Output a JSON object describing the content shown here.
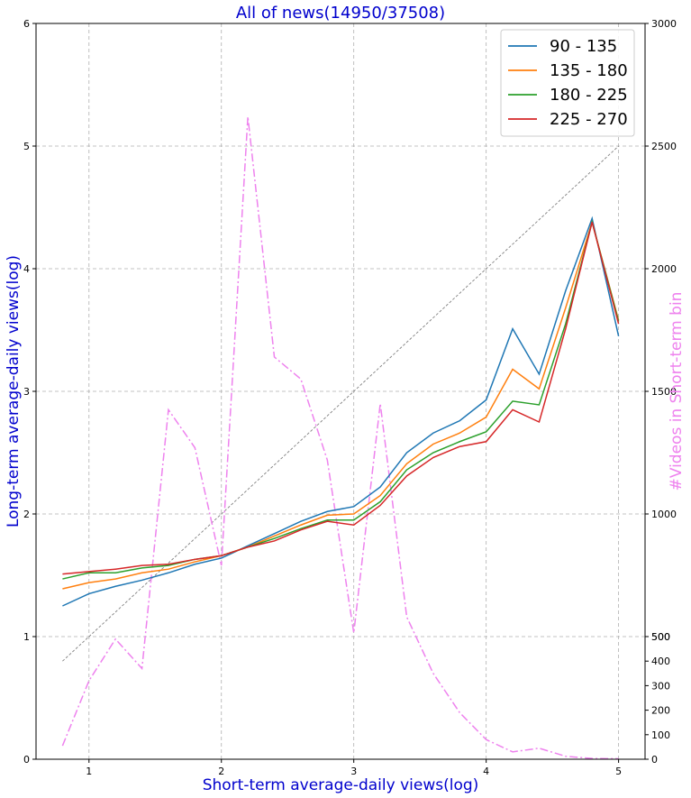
{
  "chart_data": {
    "type": "line",
    "title": "All of news(14950/37508)",
    "xlabel": "Short-term average-daily views(log)",
    "ylabel": "Long-term average-daily views(log)",
    "y2label": "#Videos in Short-term bin",
    "xlim": [
      0.6,
      5.2
    ],
    "ylim": [
      0,
      6
    ],
    "y2lim": [
      0,
      3000
    ],
    "x_ticks": [
      "1",
      "2",
      "3",
      "4",
      "5"
    ],
    "y_ticks": [
      "0",
      "1",
      "2",
      "3",
      "4",
      "5",
      "6"
    ],
    "y2_ticks": [
      "0",
      "100",
      "200",
      "300",
      "400",
      "500",
      "500",
      "1000",
      "1500",
      "2000",
      "2500",
      "3000"
    ],
    "y2_tick_values": [
      0,
      100,
      200,
      300,
      400,
      500,
      500,
      1000,
      1500,
      2000,
      2500,
      3000
    ],
    "grid": true,
    "legend_position": "top-right",
    "x": [
      0.8,
      1.0,
      1.2,
      1.4,
      1.6,
      1.8,
      2.0,
      2.2,
      2.4,
      2.6,
      2.8,
      3.0,
      3.2,
      3.4,
      3.6,
      3.8,
      4.0,
      4.2,
      4.4,
      4.6,
      4.8,
      5.0
    ],
    "series": [
      {
        "name": "90 - 135",
        "color": "#1f77b4",
        "values": [
          1.25,
          1.35,
          1.41,
          1.46,
          1.52,
          1.59,
          1.64,
          1.74,
          1.84,
          1.94,
          2.02,
          2.06,
          2.22,
          2.5,
          2.66,
          2.76,
          2.93,
          3.51,
          3.14,
          3.82,
          4.41,
          3.45
        ]
      },
      {
        "name": "135 - 180",
        "color": "#ff7f0e",
        "values": [
          1.39,
          1.44,
          1.47,
          1.52,
          1.55,
          1.61,
          1.66,
          1.73,
          1.82,
          1.91,
          1.99,
          2.0,
          2.15,
          2.41,
          2.57,
          2.66,
          2.79,
          3.18,
          3.02,
          3.68,
          4.38,
          3.58
        ]
      },
      {
        "name": "180 - 225",
        "color": "#2ca02c",
        "values": [
          1.47,
          1.52,
          1.52,
          1.56,
          1.58,
          1.63,
          1.66,
          1.73,
          1.8,
          1.88,
          1.95,
          1.95,
          2.1,
          2.36,
          2.5,
          2.59,
          2.67,
          2.92,
          2.89,
          3.55,
          4.38,
          3.57
        ]
      },
      {
        "name": "225 - 270",
        "color": "#d62728",
        "values": [
          1.51,
          1.53,
          1.55,
          1.58,
          1.59,
          1.63,
          1.66,
          1.73,
          1.78,
          1.87,
          1.94,
          1.91,
          2.07,
          2.31,
          2.46,
          2.55,
          2.59,
          2.85,
          2.75,
          3.51,
          4.38,
          3.55
        ]
      }
    ],
    "count_series": {
      "color": "#ee82ee",
      "values": [
        55,
        320,
        490,
        370,
        1425,
        1270,
        790,
        2620,
        1640,
        1550,
        1220,
        515,
        1450,
        580,
        350,
        190,
        80,
        30,
        45,
        12,
        3,
        2
      ]
    },
    "reference_line": {
      "x": [
        0.8,
        5.0
      ],
      "y": [
        0.8,
        5.0
      ],
      "color": "#808080"
    }
  }
}
